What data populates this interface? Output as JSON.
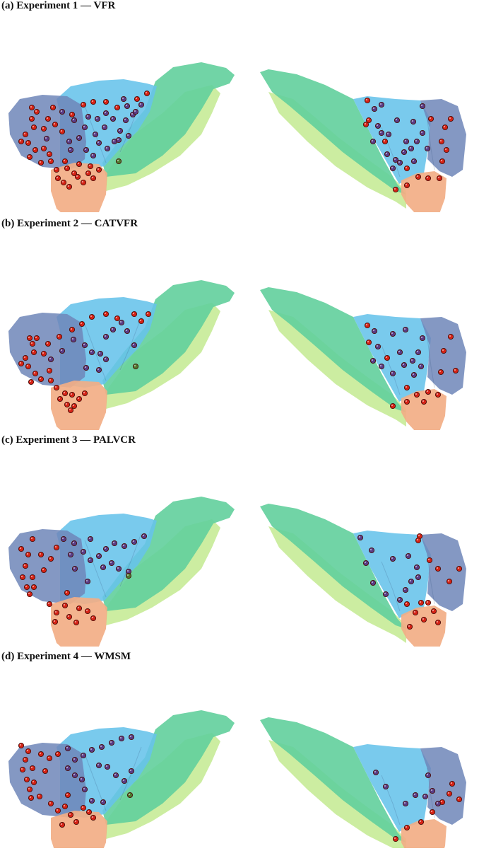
{
  "panels": [
    {
      "label": "(a) Experiment 1 — VFR"
    },
    {
      "label": "(b) Experiment 2 — CATVFR"
    },
    {
      "label": "(c) Experiment 3 — PALVCR"
    },
    {
      "label": "(d) Experiment 4 — WMSM"
    }
  ],
  "colors": {
    "region_dark": "#6f86b8",
    "region_light": "#67c3ea",
    "region_green": "#62cf9c",
    "region_yellow": "#c9ec9c",
    "region_orange": "#f2ae86",
    "electrode_red": "#d52316",
    "electrode_purple": "#5a3c86",
    "electrode_green": "#4f7a2e"
  }
}
